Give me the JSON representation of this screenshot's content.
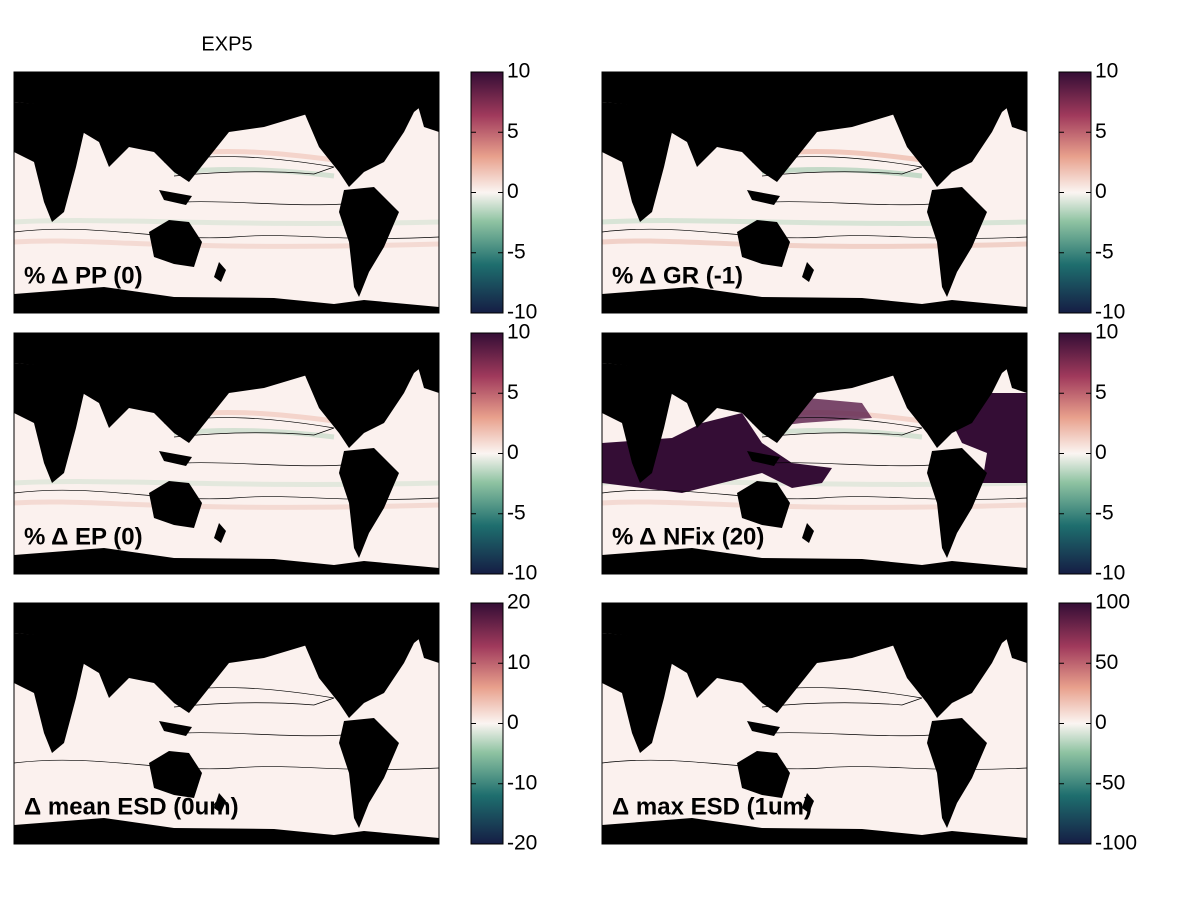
{
  "title": "EXP5",
  "panels": [
    {
      "label": "% Δ PP (0)",
      "clim": [
        -10,
        10
      ],
      "ticks": [
        -10,
        -5,
        0,
        5,
        10
      ]
    },
    {
      "label": "% Δ GR (-1)",
      "clim": [
        -10,
        10
      ],
      "ticks": [
        -10,
        -5,
        0,
        5,
        10
      ]
    },
    {
      "label": "% Δ EP (0)",
      "clim": [
        -10,
        10
      ],
      "ticks": [
        -10,
        -5,
        0,
        5,
        10
      ]
    },
    {
      "label": "% Δ NFix (20)",
      "clim": [
        -10,
        10
      ],
      "ticks": [
        -10,
        -5,
        0,
        5,
        10
      ]
    },
    {
      "label": "Δ mean ESD (0um)",
      "clim": [
        -20,
        20
      ],
      "ticks": [
        -20,
        -10,
        0,
        10,
        20
      ]
    },
    {
      "label": "Δ max ESD (1um)",
      "clim": [
        -100,
        100
      ],
      "ticks": [
        -100,
        -50,
        0,
        50,
        100
      ]
    }
  ]
}
